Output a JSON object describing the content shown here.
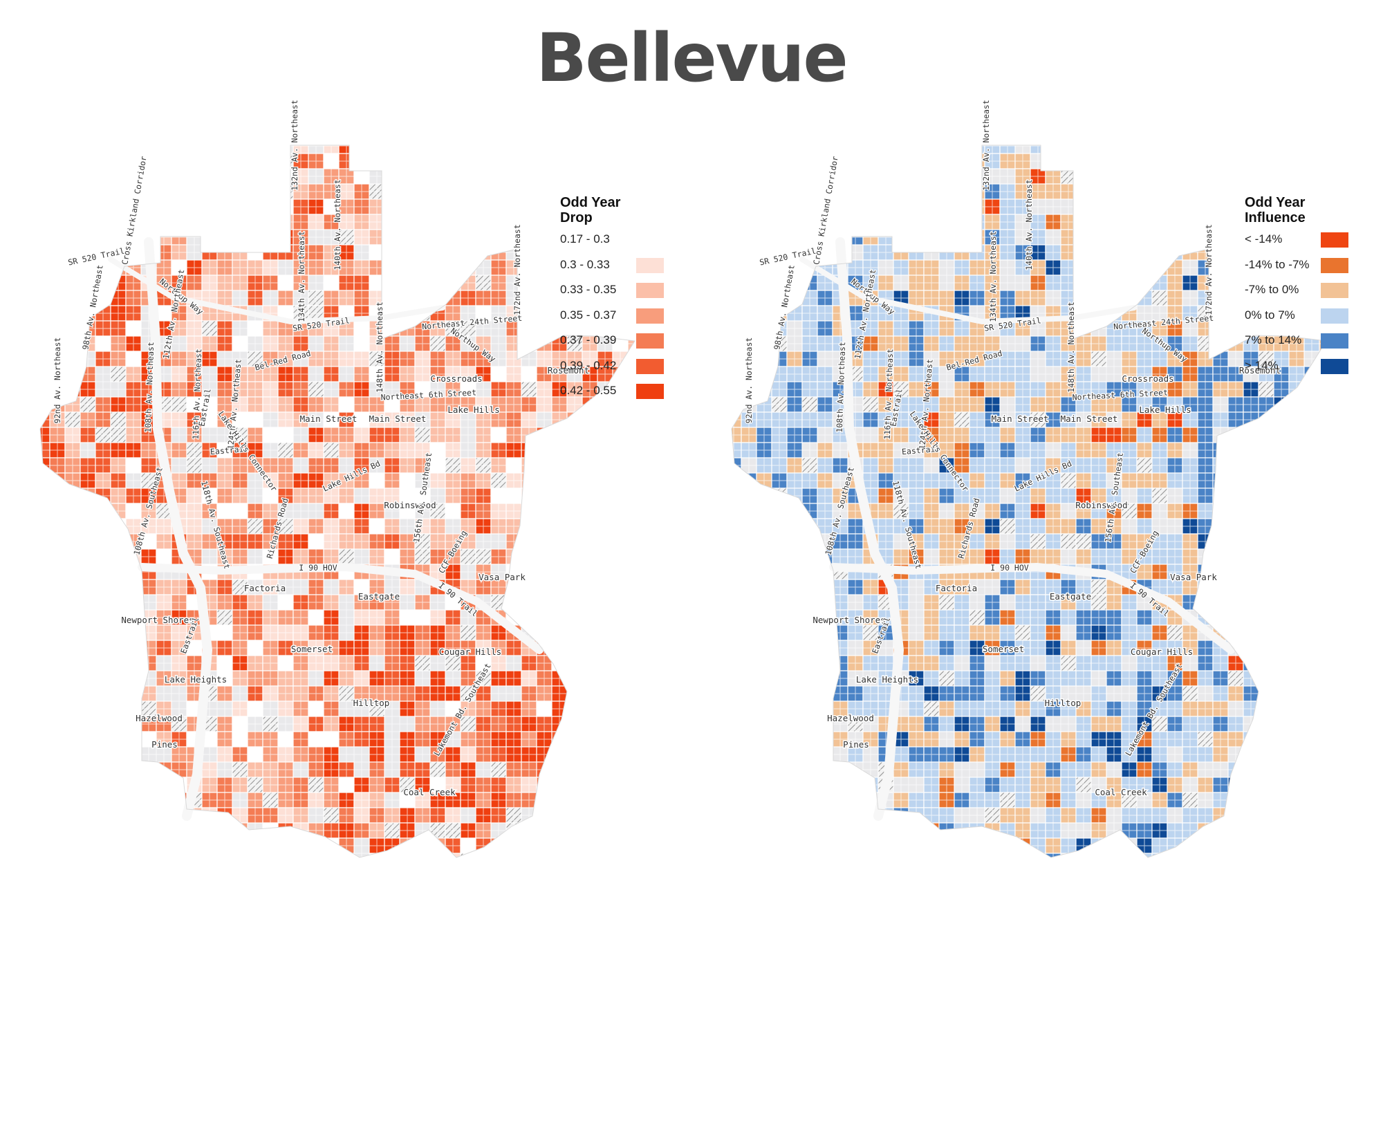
{
  "title": "Bellevue",
  "maps": [
    {
      "id": "left",
      "legend_title": "Odd Year Drop",
      "legend": [
        {
          "label": "0.17 - 0.3",
          "color": "#ffffff"
        },
        {
          "label": "0.3 - 0.33",
          "color": "#fde0d6"
        },
        {
          "label": "0.33 - 0.35",
          "color": "#fbbfa8"
        },
        {
          "label": "0.35 - 0.37",
          "color": "#f89d7c"
        },
        {
          "label": "0.37 - 0.39",
          "color": "#f47c54"
        },
        {
          "label": "0.39 - 0.42",
          "color": "#f25c30"
        },
        {
          "label": "0.42 - 0.55",
          "color": "#ef3f10"
        }
      ]
    },
    {
      "id": "right",
      "legend_title": "Odd Year Influence",
      "legend": [
        {
          "label": "< -14%",
          "color": "#ef4512"
        },
        {
          "label": "-14% to -7%",
          "color": "#e9742e"
        },
        {
          "label": "-7% to 0%",
          "color": "#f2c295"
        },
        {
          "label": "0% to 7%",
          "color": "#bcd4ef"
        },
        {
          "label": "7% to 14%",
          "color": "#4a83c6"
        },
        {
          "label": "> 14%",
          "color": "#0f4a96"
        }
      ]
    }
  ],
  "place_labels": [
    "Crossroads",
    "Lake Hills",
    "Main Street",
    "Main Street",
    "Robinswood",
    "Factoria",
    "Eastgate",
    "Newport Shores",
    "Somerset",
    "Cougar Hills",
    "Lake Heights",
    "Hilltop",
    "Hazelwood",
    "Pines",
    "Coal Creek",
    "Vasa Park",
    "Rosemont"
  ],
  "road_labels": [
    "Cross Kirkland Corridor",
    "SR 520 Trail",
    "SR 520 Trail",
    "132nd Av. Northeast",
    "140th Av. Northeast",
    "134th Av. Northeast",
    "172nd Av. Northeast",
    "Northeast 24th Street",
    "Northup Way",
    "Northup Way",
    "Bel-Red Road",
    "148th Av. Northeast",
    "92nd Av. Northeast",
    "98th Av. Northeast",
    "108th Av. Northeast",
    "112th Av. Northeast",
    "116th Av. Northeast",
    "124th Av. Northeast",
    "Northeast 6th Street",
    "Eastrail",
    "Eastrail",
    "Eastrail",
    "Lake Hills Connector",
    "Richards Road",
    "Lake Hills Bd",
    "108th Av. Southeast",
    "118th Av. Southeast",
    "156th Av. Southeast",
    "CCF-Boeing",
    "I 90 HOV",
    "I 90 Trail",
    "Lakemont Bd. Southeast"
  ]
}
